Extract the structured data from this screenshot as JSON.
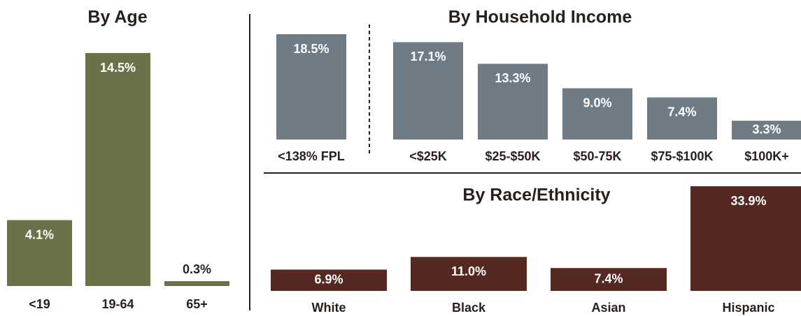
{
  "chart_data": [
    {
      "type": "bar",
      "title": "By Age",
      "categories": [
        "<19",
        "19-64",
        "65+"
      ],
      "values": [
        4.1,
        14.5,
        0.3
      ],
      "value_labels": [
        "4.1%",
        "14.5%",
        "0.3%"
      ],
      "color": "#6b7148"
    },
    {
      "type": "bar",
      "title": "By Household Income",
      "categories": [
        "<138% FPL",
        "<$25K",
        "$25-$50K",
        "$50-75K",
        "$75-$100K",
        "$100K+"
      ],
      "values": [
        18.5,
        17.1,
        13.3,
        9.0,
        7.4,
        3.3
      ],
      "value_labels": [
        "18.5%",
        "17.1%",
        "13.3%",
        "9.0%",
        "7.4%",
        "3.3%"
      ],
      "color": "#6f7b85"
    },
    {
      "type": "bar",
      "title": "By Race/Ethnicity",
      "categories": [
        "White",
        "Black",
        "Asian",
        "Hispanic"
      ],
      "values": [
        6.9,
        11.0,
        7.4,
        33.9
      ],
      "value_labels": [
        "6.9%",
        "11.0%",
        "7.4%",
        "33.9%"
      ],
      "color": "#552822"
    }
  ]
}
